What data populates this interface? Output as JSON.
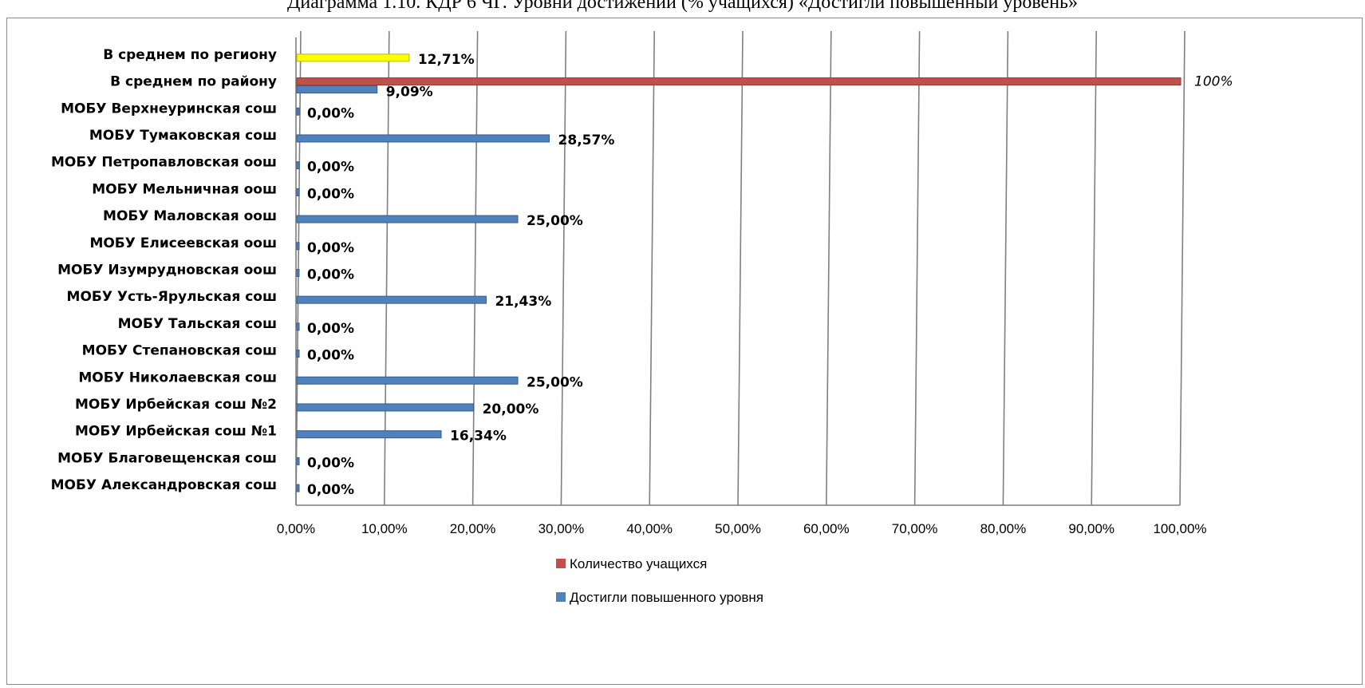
{
  "caption": "Диаграмма 1.10. КДР 6 ЧГ. Уровни достижений (% учащихся) «Достигли повышенный уровень»",
  "chart_data": {
    "type": "bar",
    "orientation": "horizontal",
    "title": "",
    "xlabel": "",
    "ylabel": "",
    "xlim": [
      0,
      100
    ],
    "x_ticks": [
      "0,00%",
      "10,00%",
      "20,00%",
      "30,00%",
      "40,00%",
      "50,00%",
      "60,00%",
      "70,00%",
      "80,00%",
      "90,00%",
      "100,00%"
    ],
    "grid": true,
    "legend_position": "bottom",
    "categories": [
      "В среднем по региону",
      "В среднем  по району",
      "МОБУ Верхнеуринская сош",
      "МОБУ Тумаковская сош",
      "МОБУ Петропавловская оош",
      "МОБУ Мельничная оош",
      "МОБУ Маловская оош",
      "МОБУ Елисеевская оош",
      "МОБУ Изумрудновская оош",
      "МОБУ Усть-Ярульская сош",
      "МОБУ Тальская сош",
      "МОБУ Степановская сош",
      "МОБУ Николаевская сош",
      "МОБУ Ирбейская сош №2",
      "МОБУ Ирбейская сош №1",
      "МОБУ Благовещенская сош",
      "МОБУ Александровская сош"
    ],
    "series": [
      {
        "name": "Количество учащихся",
        "color": "#c0504d",
        "values": [
          null,
          100,
          null,
          null,
          null,
          null,
          null,
          null,
          null,
          null,
          null,
          null,
          null,
          null,
          null,
          null,
          null
        ],
        "labels": [
          "",
          "100%",
          "",
          "",
          "",
          "",
          "",
          "",
          "",
          "",
          "",
          "",
          "",
          "",
          "",
          "",
          ""
        ]
      },
      {
        "name": "Достигли повышенного уровня",
        "color": "#4f81bd",
        "values": [
          12.71,
          9.09,
          0,
          28.57,
          0,
          0,
          25,
          0,
          0,
          21.43,
          0,
          0,
          25,
          20,
          16.34,
          0,
          0
        ],
        "labels": [
          "12,71%",
          "9,09%",
          "0,00%",
          "28,57%",
          "0,00%",
          "0,00%",
          "25,00%",
          "0,00%",
          "0,00%",
          "21,43%",
          "0,00%",
          "0,00%",
          "25,00%",
          "20,00%",
          "16,34%",
          "0,00%",
          "0,00%"
        ]
      }
    ],
    "highlight": {
      "category_index": 0,
      "color": "#ffff00"
    }
  }
}
